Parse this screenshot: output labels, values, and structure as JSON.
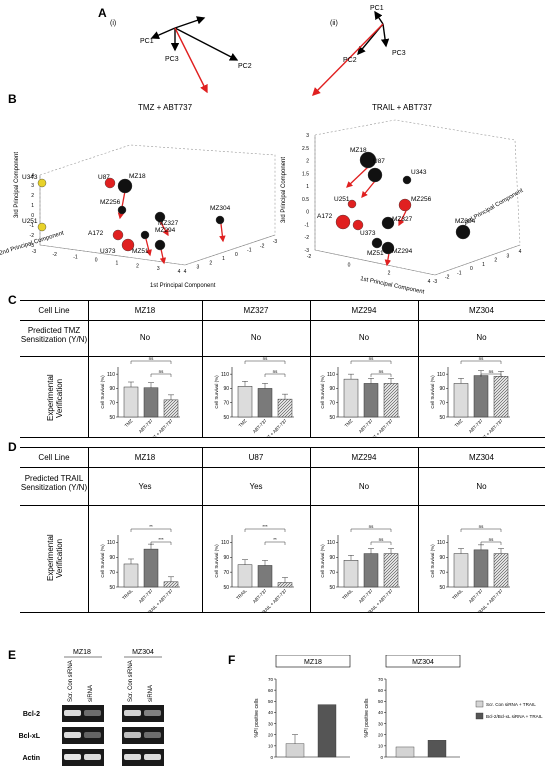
{
  "panelA": {
    "letter": "A",
    "left": {
      "label": "(i)",
      "pcs": [
        "PC1",
        "PC2",
        "PC3"
      ]
    },
    "right": {
      "label": "(ii)",
      "pcs": [
        "PC1",
        "PC2",
        "PC3"
      ]
    }
  },
  "panelB": {
    "letter": "B",
    "plots": [
      {
        "title": "TMZ + ABT737",
        "axes": {
          "x": "1st Principal Component",
          "y": "2nd Principal Component",
          "z": "3rd Principal Component"
        },
        "xticks": [
          "4",
          "3",
          "2",
          "1",
          "0",
          "-1",
          "-2",
          "-3"
        ],
        "yticks": [
          "-3",
          "-2",
          "-1",
          "0",
          "1",
          "2",
          "3",
          "4"
        ],
        "zticks": [
          "-3",
          "-2",
          "-1",
          "0",
          "1",
          "2",
          "3",
          "4"
        ],
        "points": [
          {
            "name": "U343",
            "color": "#e8d22a"
          },
          {
            "name": "U251",
            "color": "#e8d22a"
          },
          {
            "name": "U87",
            "color": "#e02020"
          },
          {
            "name": "MZ18",
            "color": "#111111"
          },
          {
            "name": "MZ256",
            "color": "#111111"
          },
          {
            "name": "MZ327",
            "color": "#111111"
          },
          {
            "name": "MZ304",
            "color": "#111111"
          },
          {
            "name": "MZ294",
            "color": "#111111"
          },
          {
            "name": "A172",
            "color": "#e02020"
          },
          {
            "name": "U373",
            "color": "#e02020"
          },
          {
            "name": "MZ51",
            "color": "#111111"
          }
        ]
      },
      {
        "title": "TRAIL + ABT737",
        "axes": {
          "x": "1st Principal Component",
          "y": "2nd Principal Component",
          "z": "3rd Principal Component"
        },
        "xticks": [
          "-3",
          "-2",
          "-1",
          "0",
          "1",
          "2",
          "3",
          "4"
        ],
        "yticks": [
          "-2",
          "0",
          "2",
          "4"
        ],
        "zticks": [
          "-3",
          "-2",
          "-1",
          "0",
          "0.5",
          "1",
          "1.5",
          "2",
          "2.5",
          "3"
        ],
        "points": [
          {
            "name": "MZ18",
            "color": "#111111"
          },
          {
            "name": "U87",
            "color": "#111111"
          },
          {
            "name": "U343",
            "color": "#111111"
          },
          {
            "name": "U251",
            "color": "#e02020"
          },
          {
            "name": "MZ256",
            "color": "#e02020"
          },
          {
            "name": "A172",
            "color": "#e02020"
          },
          {
            "name": "U373",
            "color": "#e02020"
          },
          {
            "name": "MZ327",
            "color": "#111111"
          },
          {
            "name": "MZ304",
            "color": "#111111"
          },
          {
            "name": "MZ51",
            "color": "#111111"
          },
          {
            "name": "MZ294",
            "color": "#111111"
          }
        ]
      }
    ]
  },
  "panelC": {
    "letter": "C",
    "row_labels": [
      "Cell Line",
      "Predicted TMZ Sensitization (Y/N)",
      "Experimental Verification"
    ],
    "columns": [
      {
        "cell_line": "MZ18",
        "predicted": "No"
      },
      {
        "cell_line": "MZ327",
        "predicted": "No"
      },
      {
        "cell_line": "MZ294",
        "predicted": "No"
      },
      {
        "cell_line": "MZ304",
        "predicted": "No"
      }
    ],
    "ylabel": "Cell Survival (%)",
    "categories": [
      "TMZ",
      "ABT-737",
      "TMZ + ABT-737"
    ],
    "yticks": [
      "50",
      "70",
      "90",
      "110"
    ],
    "sig": [
      "ns",
      "ns"
    ]
  },
  "panelD": {
    "letter": "D",
    "row_labels": [
      "Cell Line",
      "Predicted TRAIL Sensitization (Y/N)",
      "Experimental Verification"
    ],
    "columns": [
      {
        "cell_line": "MZ18",
        "predicted": "Yes",
        "sig": [
          "**",
          "***"
        ]
      },
      {
        "cell_line": "U87",
        "predicted": "Yes",
        "sig": [
          "***",
          "**"
        ]
      },
      {
        "cell_line": "MZ294",
        "predicted": "No",
        "sig": [
          "ns",
          "ns"
        ]
      },
      {
        "cell_line": "MZ304",
        "predicted": "No",
        "sig": [
          "ns",
          "ns"
        ]
      }
    ],
    "ylabel": "Cell Survival (%)",
    "categories": [
      "TRAIL",
      "ABT-737",
      "TRAIL + ABT-737"
    ],
    "yticks": [
      "50",
      "70",
      "90",
      "110"
    ]
  },
  "panelE": {
    "letter": "E",
    "groups": [
      "MZ18",
      "MZ304"
    ],
    "lanes": [
      "Scr. Con siRNA",
      "siRNA",
      "Scr. Con siRNA",
      "siRNA"
    ],
    "rows": [
      "Bcl-2",
      "Bcl-xL",
      "Actin"
    ]
  },
  "panelF": {
    "letter": "F",
    "ylabel": "%PI positive cells",
    "yticks": [
      "0",
      "10",
      "20",
      "30",
      "40",
      "50",
      "60",
      "70"
    ],
    "legend": [
      "Scr. Con siRNA + TRAIL",
      "Bcl-2/Bcl-xL siRNA + TRAIL"
    ],
    "colors": [
      "#d4d4d4",
      "#555555"
    ]
  },
  "chart_data": [
    {
      "type": "bar",
      "title": "MZ18",
      "categories": [
        "TMZ",
        "ABT-737",
        "TMZ + ABT-737"
      ],
      "values": [
        92,
        91,
        74
      ],
      "ylim": [
        50,
        120
      ]
    },
    {
      "type": "bar",
      "title": "MZ327",
      "categories": [
        "TMZ",
        "ABT-737",
        "TMZ + ABT-737"
      ],
      "values": [
        93,
        90,
        75
      ],
      "ylim": [
        50,
        120
      ]
    },
    {
      "type": "bar",
      "title": "MZ294",
      "categories": [
        "TMZ",
        "ABT-737",
        "TMZ + ABT-737"
      ],
      "values": [
        103,
        97,
        97
      ],
      "ylim": [
        50,
        120
      ]
    },
    {
      "type": "bar",
      "title": "MZ304",
      "categories": [
        "TMZ",
        "ABT-737",
        "TMZ + ABT-737"
      ],
      "values": [
        97,
        108,
        107
      ],
      "ylim": [
        50,
        120
      ]
    },
    {
      "type": "bar",
      "title": "MZ18",
      "categories": [
        "TRAIL",
        "ABT-737",
        "TRAIL + ABT-737"
      ],
      "values": [
        81,
        101,
        57
      ],
      "ylim": [
        50,
        120
      ]
    },
    {
      "type": "bar",
      "title": "U87",
      "categories": [
        "TRAIL",
        "ABT-737",
        "TRAIL + ABT-737"
      ],
      "values": [
        80,
        79,
        56
      ],
      "ylim": [
        50,
        120
      ]
    },
    {
      "type": "bar",
      "title": "MZ294",
      "categories": [
        "TRAIL",
        "ABT-737",
        "TRAIL + ABT-737"
      ],
      "values": [
        86,
        95,
        95
      ],
      "ylim": [
        50,
        120
      ]
    },
    {
      "type": "bar",
      "title": "MZ304",
      "categories": [
        "TRAIL",
        "ABT-737",
        "TRAIL + ABT-737"
      ],
      "values": [
        95,
        100,
        95
      ],
      "ylim": [
        50,
        120
      ]
    },
    {
      "type": "bar",
      "title": "MZ18",
      "ylabel": "%PI positive cells",
      "series": [
        {
          "name": "Scr. Con siRNA + TRAIL",
          "values": [
            12
          ]
        },
        {
          "name": "Bcl-2/Bcl-xL siRNA + TRAIL",
          "values": [
            47
          ]
        }
      ],
      "ylim": [
        0,
        70
      ]
    },
    {
      "type": "bar",
      "title": "MZ304",
      "ylabel": "%PI positive cells",
      "series": [
        {
          "name": "Scr. Con siRNA + TRAIL",
          "values": [
            9
          ]
        },
        {
          "name": "Bcl-2/Bcl-xL siRNA + TRAIL",
          "values": [
            15
          ]
        }
      ],
      "ylim": [
        0,
        70
      ]
    }
  ]
}
